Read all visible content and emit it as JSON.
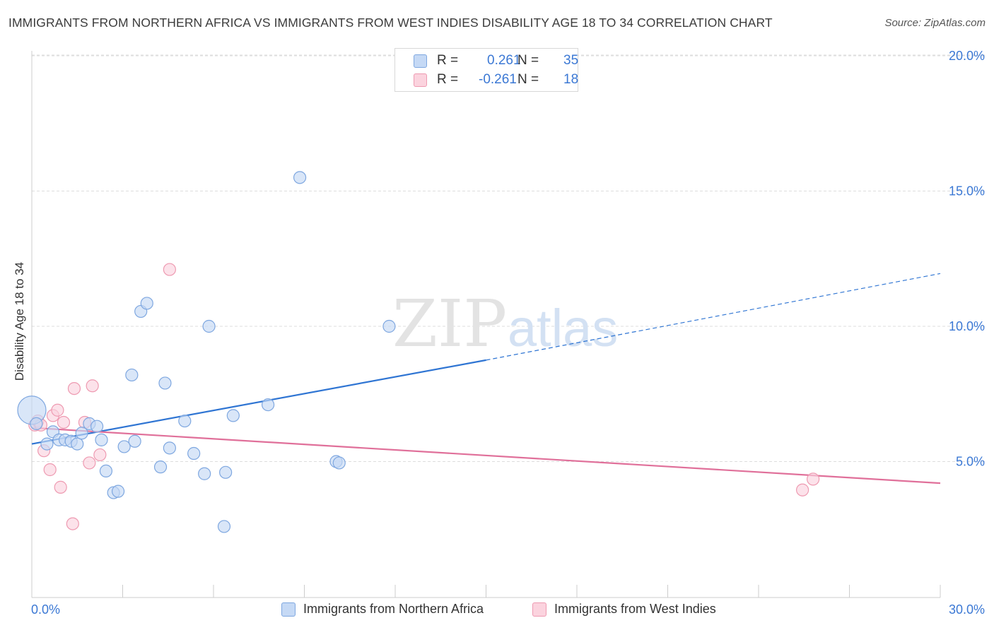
{
  "title": "IMMIGRANTS FROM NORTHERN AFRICA VS IMMIGRANTS FROM WEST INDIES DISABILITY AGE 18 TO 34 CORRELATION CHART",
  "source": "Source: ZipAtlas.com",
  "watermark": {
    "zip": "ZIP",
    "atlas": "atlas"
  },
  "legend": {
    "series": [
      {
        "r_label": "R =",
        "r_value": "0.261",
        "n_label": "N =",
        "n_value": "35"
      },
      {
        "r_label": "R =",
        "r_value": "-0.261",
        "n_label": "N =",
        "n_value": "18"
      }
    ]
  },
  "colors": {
    "blue_fill": "#c5d9f5",
    "blue_stroke": "#7ea7e0",
    "blue_line": "#2f75d3",
    "pink_fill": "#fbd3de",
    "pink_stroke": "#ee9ab1",
    "pink_line": "#e0709a",
    "value_text": "#3b78d4",
    "grid": "#dddddd"
  },
  "chart_data": {
    "type": "scatter",
    "title": "IMMIGRANTS FROM NORTHERN AFRICA VS IMMIGRANTS FROM WEST INDIES DISABILITY AGE 18 TO 34 CORRELATION CHART",
    "xlabel": "",
    "ylabel": "Disability Age 18 to 34",
    "xlim": [
      0,
      30
    ],
    "ylim": [
      0,
      20.5
    ],
    "x_tick_labels": [
      "0.0%",
      "30.0%"
    ],
    "y_ticks": [
      5,
      10,
      15,
      20
    ],
    "y_tick_labels": [
      "5.0%",
      "10.0%",
      "15.0%",
      "20.0%"
    ],
    "grid": true,
    "legend_position": "top-center",
    "series": [
      {
        "name": "Immigrants from Northern Africa",
        "color": "blue",
        "R": 0.261,
        "N": 35,
        "trend": {
          "x0": 0.0,
          "y0": 5.65,
          "x1": 15.0,
          "y1": 8.75,
          "dashed_to_x": 30.0,
          "dashed_to_y": 11.95
        },
        "points": [
          {
            "x": 0.0,
            "y": 6.9,
            "size": "large"
          },
          {
            "x": 0.15,
            "y": 6.4
          },
          {
            "x": 0.5,
            "y": 5.65
          },
          {
            "x": 0.7,
            "y": 6.1
          },
          {
            "x": 0.9,
            "y": 5.8
          },
          {
            "x": 1.1,
            "y": 5.8
          },
          {
            "x": 1.3,
            "y": 5.75
          },
          {
            "x": 1.5,
            "y": 5.65
          },
          {
            "x": 1.65,
            "y": 6.05
          },
          {
            "x": 1.9,
            "y": 6.4
          },
          {
            "x": 2.15,
            "y": 6.3
          },
          {
            "x": 2.3,
            "y": 5.8
          },
          {
            "x": 2.45,
            "y": 4.65
          },
          {
            "x": 2.7,
            "y": 3.85
          },
          {
            "x": 2.85,
            "y": 3.9
          },
          {
            "x": 3.05,
            "y": 5.55
          },
          {
            "x": 3.3,
            "y": 8.2
          },
          {
            "x": 3.4,
            "y": 5.75
          },
          {
            "x": 3.6,
            "y": 10.55
          },
          {
            "x": 3.8,
            "y": 10.85
          },
          {
            "x": 4.25,
            "y": 4.8
          },
          {
            "x": 4.4,
            "y": 7.9
          },
          {
            "x": 4.55,
            "y": 5.5
          },
          {
            "x": 5.05,
            "y": 6.5
          },
          {
            "x": 5.35,
            "y": 5.3
          },
          {
            "x": 5.7,
            "y": 4.55
          },
          {
            "x": 5.85,
            "y": 10.0
          },
          {
            "x": 6.4,
            "y": 4.6
          },
          {
            "x": 6.35,
            "y": 2.6
          },
          {
            "x": 6.65,
            "y": 6.7
          },
          {
            "x": 7.8,
            "y": 7.1
          },
          {
            "x": 8.85,
            "y": 15.5
          },
          {
            "x": 10.05,
            "y": 5.0
          },
          {
            "x": 10.15,
            "y": 4.95
          },
          {
            "x": 11.8,
            "y": 10.0
          }
        ]
      },
      {
        "name": "Immigrants from West Indies",
        "color": "pink",
        "R": -0.261,
        "N": 18,
        "trend": {
          "x0": 0.0,
          "y0": 6.25,
          "x1": 30.0,
          "y1": 4.2
        },
        "points": [
          {
            "x": 0.1,
            "y": 6.35
          },
          {
            "x": 0.2,
            "y": 6.5
          },
          {
            "x": 0.3,
            "y": 6.35
          },
          {
            "x": 0.4,
            "y": 5.4
          },
          {
            "x": 0.6,
            "y": 4.7
          },
          {
            "x": 0.7,
            "y": 6.7
          },
          {
            "x": 0.85,
            "y": 6.9
          },
          {
            "x": 0.95,
            "y": 4.05
          },
          {
            "x": 1.05,
            "y": 6.45
          },
          {
            "x": 1.35,
            "y": 2.7
          },
          {
            "x": 1.4,
            "y": 7.7
          },
          {
            "x": 1.75,
            "y": 6.45
          },
          {
            "x": 1.9,
            "y": 4.95
          },
          {
            "x": 2.25,
            "y": 5.25
          },
          {
            "x": 2.0,
            "y": 7.8
          },
          {
            "x": 4.55,
            "y": 12.1
          },
          {
            "x": 25.8,
            "y": 4.35
          },
          {
            "x": 25.45,
            "y": 3.95
          }
        ]
      }
    ]
  }
}
